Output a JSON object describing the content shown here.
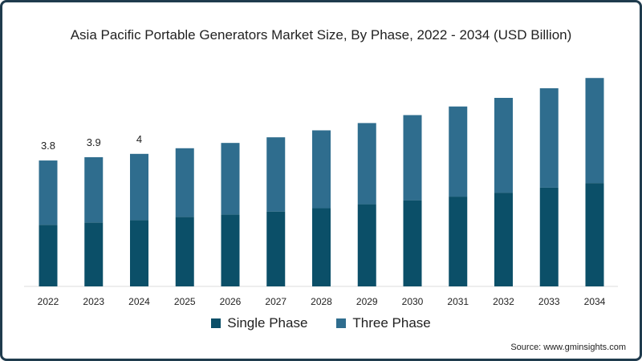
{
  "chart_data": {
    "type": "bar",
    "stacked": true,
    "title": "Asia Pacific Portable Generators Market Size, By Phase, 2022 - 2034 (USD Billion)",
    "xlabel": "",
    "ylabel": "",
    "categories": [
      "2022",
      "2023",
      "2024",
      "2025",
      "2026",
      "2027",
      "2028",
      "2029",
      "2030",
      "2031",
      "2032",
      "2033",
      "2034"
    ],
    "series": [
      {
        "name": "Single Phase",
        "color": "#0b4f68",
        "values": [
          1.86,
          1.93,
          2.0,
          2.1,
          2.17,
          2.26,
          2.36,
          2.48,
          2.6,
          2.71,
          2.83,
          2.98,
          3.12
        ]
      },
      {
        "name": "Three Phase",
        "color": "#2f6d8e",
        "values": [
          1.94,
          1.97,
          2.0,
          2.07,
          2.16,
          2.24,
          2.35,
          2.45,
          2.57,
          2.72,
          2.86,
          3.0,
          3.17
        ]
      }
    ],
    "data_labels": [
      {
        "category": "2022",
        "text": "3.8"
      },
      {
        "category": "2023",
        "text": "3.9"
      },
      {
        "category": "2024",
        "text": "4"
      }
    ],
    "ylim": [
      0,
      6.5
    ],
    "grid": false,
    "legend_position": "bottom"
  },
  "source": "Source: www.gminsights.com"
}
